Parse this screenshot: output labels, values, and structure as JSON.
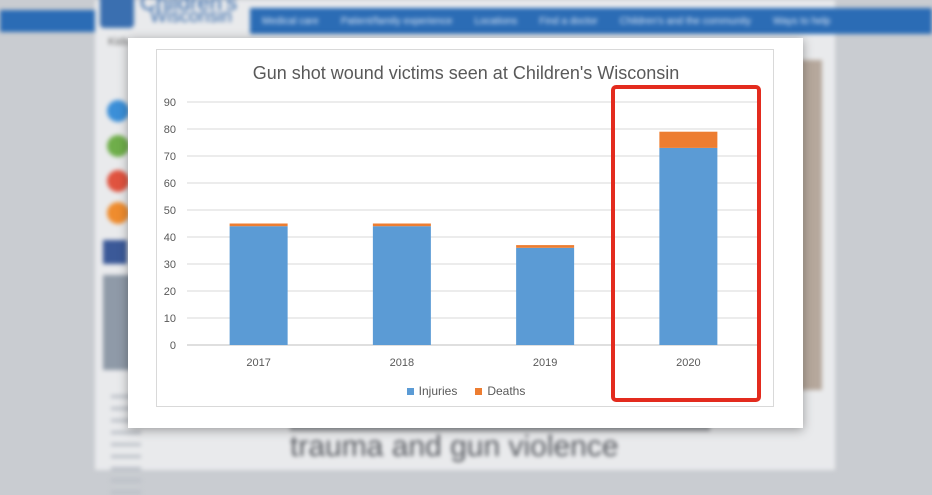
{
  "website": {
    "logo_line1": "Children's",
    "logo_line2": "Wisconsin",
    "nav": [
      "Medical care",
      "Patient/family experience",
      "Locations",
      "Find a doctor",
      "Children's and the community",
      "Ways to help"
    ],
    "kids_text": "Kids",
    "headline": "trauma and gun violence"
  },
  "colors": {
    "injuries": "#5b9bd5",
    "deaths": "#ed7d31",
    "highlight": "#e32b1e"
  },
  "chart_data": {
    "type": "bar",
    "stacked": true,
    "title": "Gun shot wound victims seen at Children's Wisconsin",
    "categories": [
      "2017",
      "2018",
      "2019",
      "2020"
    ],
    "series": [
      {
        "name": "Injuries",
        "values": [
          44,
          44,
          36,
          73
        ]
      },
      {
        "name": "Deaths",
        "values": [
          1,
          1,
          1,
          6
        ]
      }
    ],
    "ylim": [
      0,
      90
    ],
    "yticks": [
      0,
      10,
      20,
      30,
      40,
      50,
      60,
      70,
      80,
      90
    ],
    "grid": true,
    "legend": "bottom-center",
    "highlighted_category": "2020"
  }
}
